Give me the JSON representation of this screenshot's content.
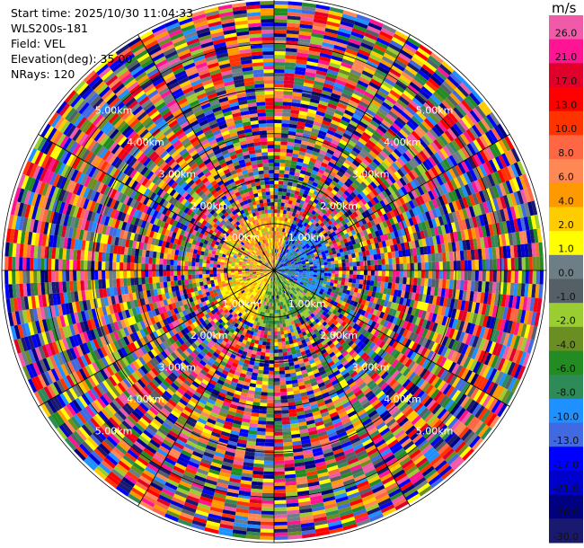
{
  "header": {
    "start_time": "Start time: 2025/10/30 11:04:33",
    "instrument": "WLS200s-181",
    "field": "Field: VEL",
    "elevation": "Elevation(deg): 35.00",
    "nrays": "NRays: 120"
  },
  "scan": {
    "nrays": 120,
    "rings": 5,
    "ring_labels": [
      "1.00km",
      "2.00km",
      "3.00km",
      "4.00km",
      "5.00km"
    ]
  },
  "colorbar": {
    "unit": "m/s",
    "ticks": [
      "26.0",
      "21.0",
      "17.0",
      "13.0",
      "10.0",
      "8.0",
      "6.0",
      "4.0",
      "2.0",
      "1.0",
      "0.0",
      "-1.0",
      "-2.0",
      "-4.0",
      "-6.0",
      "-8.0",
      "-10.0",
      "-13.0",
      "-17.0",
      "-21.0",
      "-26.0",
      "-30.0"
    ],
    "colors": [
      "#f05aa8",
      "#ff1493",
      "#e0002a",
      "#ff0000",
      "#ff3300",
      "#ff6644",
      "#ff8855",
      "#ff9900",
      "#ffcc00",
      "#ffff00",
      "#6e7e86",
      "#555f66",
      "#9acd32",
      "#6b8e23",
      "#228b22",
      "#2e8b57",
      "#1e90ff",
      "#4169e1",
      "#0000ff",
      "#0000cd",
      "#000080",
      "#191970"
    ]
  }
}
